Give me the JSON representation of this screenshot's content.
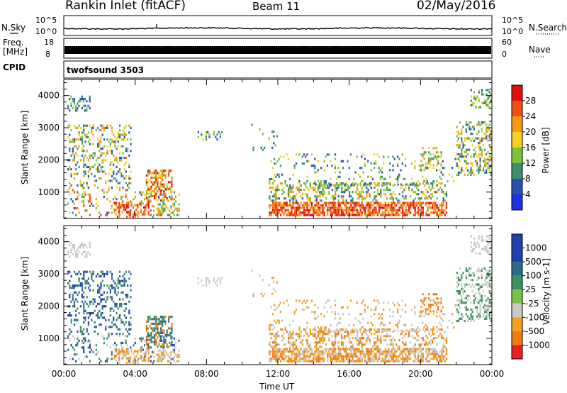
{
  "header": {
    "station": "Rankin Inlet (fitACF)",
    "beam": "Beam 11",
    "date": "02/May/2016"
  },
  "top_panels": {
    "nsky_label": "N.Sky",
    "nsearch_label": "N.Search",
    "noise_ticks": [
      "10^5",
      "10^0"
    ],
    "freq_label_line1": "Freq.",
    "freq_label_line2": "[MHz]",
    "freq_ticks": [
      "18",
      "8"
    ],
    "nave_label": "Nave",
    "nave_ticks": [
      "60",
      "0"
    ],
    "cpid_label": "CPID",
    "cpid_value": "twofsound 3503"
  },
  "chart_data": [
    {
      "type": "heatmap",
      "name": "power",
      "xlabel": "",
      "ylabel": "Slant Range [km]",
      "x_ticks": [
        "00:00",
        "04:00",
        "08:00",
        "12:00",
        "16:00",
        "20:00",
        "00:00"
      ],
      "xlim_hours": [
        0,
        24
      ],
      "y_ticks": [
        1000,
        2000,
        3000,
        4000
      ],
      "ylim_km": [
        180,
        4500
      ],
      "colorbar_label": "Power [dB]",
      "colorbar_ticks": [
        4,
        8,
        12,
        16,
        20,
        24,
        28
      ],
      "colorbar_range": [
        0,
        32
      ],
      "colors": [
        "#1f2fe6",
        "#2a52b0",
        "#3a8f6e",
        "#7cc23a",
        "#f0d020",
        "#f59a10",
        "#f05010",
        "#e01010"
      ]
    },
    {
      "type": "heatmap",
      "name": "velocity",
      "xlabel": "Time UT",
      "ylabel": "Slant Range [km]",
      "x_ticks": [
        "00:00",
        "04:00",
        "08:00",
        "12:00",
        "16:00",
        "20:00",
        "00:00"
      ],
      "xlim_hours": [
        0,
        24
      ],
      "y_ticks": [
        1000,
        2000,
        3000,
        4000
      ],
      "ylim_km": [
        180,
        4500
      ],
      "colorbar_label": "Velocity [m s-1]",
      "colorbar_ticks": [
        "1000",
        "500",
        "100",
        "25",
        "-25",
        "-100",
        "-500",
        "-1000"
      ],
      "colors": [
        "#2040b0",
        "#2f6a8a",
        "#3d9060",
        "#79c24a",
        "#c8c8c8",
        "#f2a020",
        "#f07a10",
        "#e82020"
      ]
    }
  ]
}
